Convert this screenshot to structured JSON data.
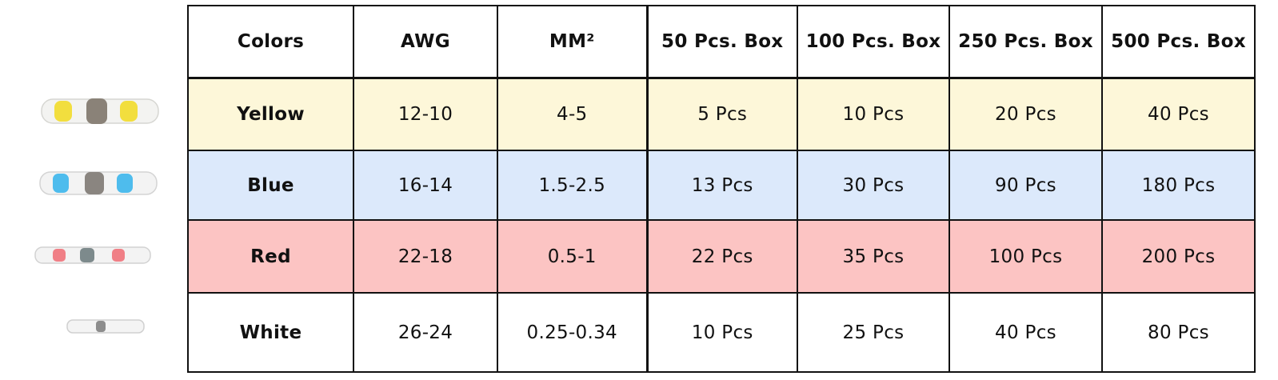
{
  "table": {
    "headers": [
      "Colors",
      "AWG",
      "MM²",
      "50 Pcs. Box",
      "100 Pcs. Box",
      "250 Pcs. Box",
      "500 Pcs. Box"
    ],
    "rows": [
      {
        "color": "Yellow",
        "awg": "12-10",
        "mm2": "4-5",
        "box50": "5 Pcs",
        "box100": "10 Pcs",
        "box250": "20 Pcs",
        "box500": "40 Pcs"
      },
      {
        "color": "Blue",
        "awg": "16-14",
        "mm2": "1.5-2.5",
        "box50": "13 Pcs",
        "box100": "30 Pcs",
        "box250": "90 Pcs",
        "box500": "180 Pcs"
      },
      {
        "color": "Red",
        "awg": "22-18",
        "mm2": "0.5-1",
        "box50": "22 Pcs",
        "box100": "35 Pcs",
        "box250": "100 Pcs",
        "box500": "200 Pcs"
      },
      {
        "color": "White",
        "awg": "26-24",
        "mm2": "0.25-0.34",
        "box50": "10 Pcs",
        "box100": "25 Pcs",
        "box250": "40 Pcs",
        "box500": "80 Pcs"
      }
    ]
  },
  "thumbnails": [
    {
      "icon": "yellow-solder-sleeve-icon",
      "band_color": "#f2dc2a",
      "center_color": "#8a8278"
    },
    {
      "icon": "blue-solder-sleeve-icon",
      "band_color": "#3cb6ec",
      "center_color": "#8a8580"
    },
    {
      "icon": "red-solder-sleeve-icon",
      "band_color": "#f0727a",
      "center_color": "#7d8a8c"
    },
    {
      "icon": "white-solder-sleeve-icon",
      "band_color": "#f4f4f4",
      "center_color": "#8d8d8d"
    }
  ]
}
